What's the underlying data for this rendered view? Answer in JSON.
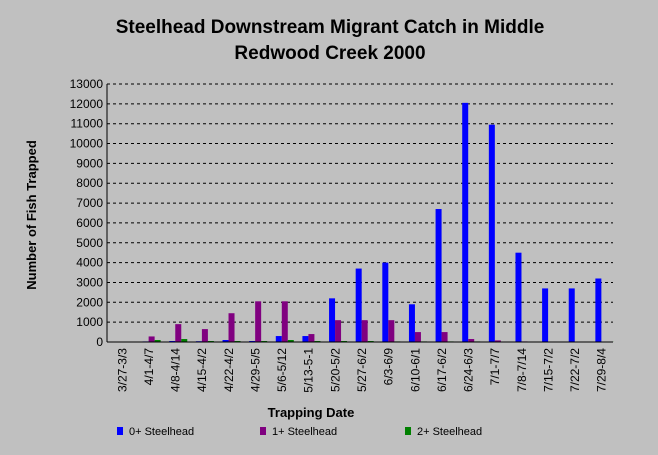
{
  "chart_data": {
    "type": "bar",
    "title_lines": [
      "Steelhead Downstream Migrant Catch in Middle",
      "Redwood Creek 2000"
    ],
    "xlabel": "Trapping Date",
    "ylabel": "Number of Fish Trapped",
    "ylim": [
      0,
      13000
    ],
    "yticks": [
      0,
      1000,
      2000,
      3000,
      4000,
      5000,
      6000,
      7000,
      8000,
      9000,
      10000,
      11000,
      12000,
      13000
    ],
    "grid": "horizontal dashed",
    "legend_position": "bottom",
    "categories": [
      "3/27-3/3",
      "4/1-4/7",
      "4/8-4/14",
      "4/15-4/2",
      "4/22-4/2",
      "4/29-5/5",
      "5/6-5/12",
      "5/13-5-1",
      "5/20-5/2",
      "5/27-6/2",
      "6/3-6/9",
      "6/10-6/1",
      "6/17-6/2",
      "6/24-6/3",
      "7/1-7/7",
      "7/8-7/14",
      "7/15-7/2",
      "7/22-7/2",
      "7/29-8/4"
    ],
    "series": [
      {
        "name": "0+ Steelhead",
        "color": "#0000ff",
        "values": [
          0,
          30,
          50,
          40,
          100,
          50,
          300,
          300,
          2200,
          3700,
          4000,
          1900,
          6700,
          12050,
          10950,
          4500,
          2700,
          2700,
          3200
        ]
      },
      {
        "name": "1+ Steelhead",
        "color": "#800080",
        "values": [
          0,
          280,
          900,
          650,
          1450,
          2050,
          2050,
          400,
          1100,
          1100,
          1100,
          500,
          500,
          150,
          80,
          30,
          20,
          20,
          20
        ]
      },
      {
        "name": "2+ Steelhead",
        "color": "#008000",
        "values": [
          0,
          100,
          150,
          50,
          50,
          50,
          100,
          50,
          50,
          50,
          30,
          30,
          30,
          30,
          20,
          20,
          20,
          20,
          20
        ]
      }
    ]
  }
}
